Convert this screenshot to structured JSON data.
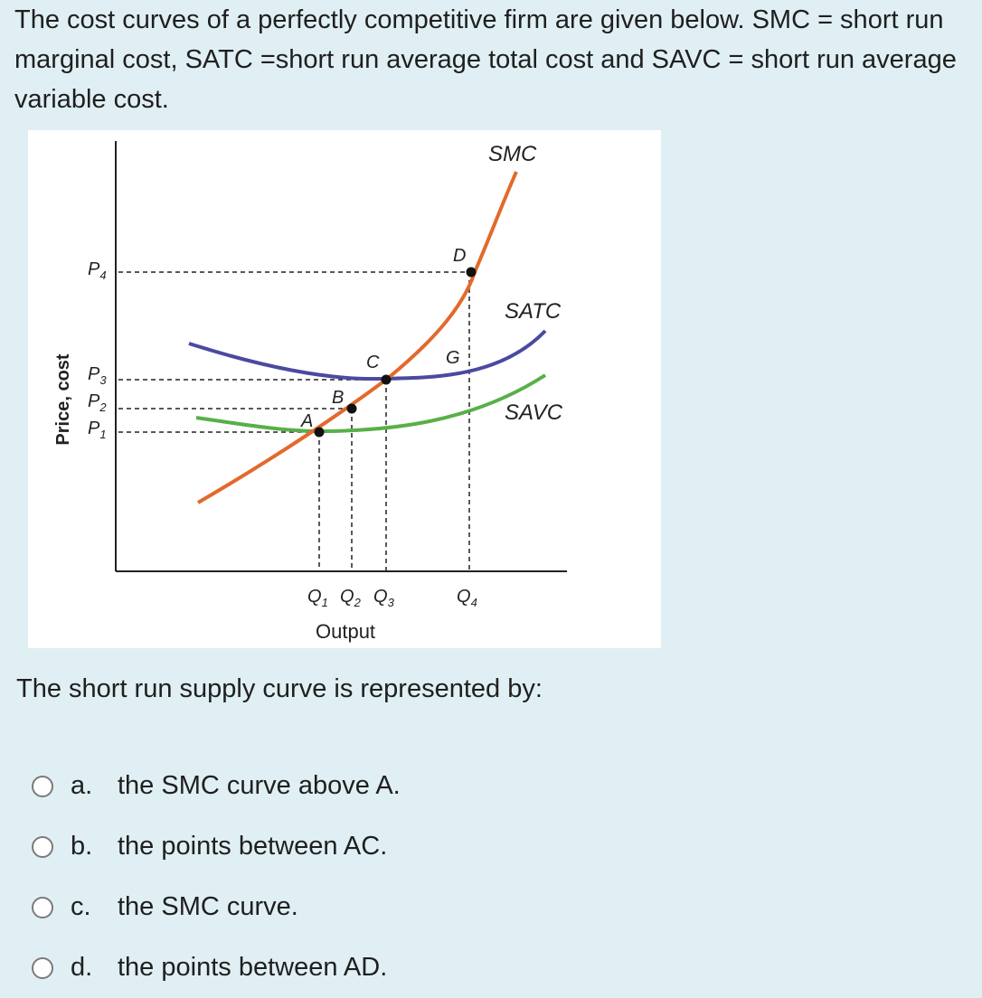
{
  "question": {
    "intro": "The cost curves of a perfectly competitive firm are given below. SMC = short run marginal cost, SATC =short run average total cost and SAVC = short run average variable cost."
  },
  "figure": {
    "y_axis_label": "Price, cost",
    "x_axis_label": "Output",
    "price_labels": {
      "p4": "P",
      "p4_sub": "4",
      "p3": "P",
      "p3_sub": "3",
      "p2": "P",
      "p2_sub": "2",
      "p1": "P",
      "p1_sub": "1"
    },
    "quantity_labels": {
      "q1": "Q",
      "q1_sub": "1",
      "q2": "Q",
      "q2_sub": "2",
      "q3": "Q",
      "q3_sub": "3",
      "q4": "Q",
      "q4_sub": "4"
    },
    "curve_labels": {
      "smc": "SMC",
      "satc": "SATC",
      "savc": "SAVC"
    },
    "point_labels": {
      "a": "A",
      "b": "B",
      "c": "C",
      "d": "D",
      "g": "G"
    },
    "colors": {
      "smc": "#e26a2c",
      "satc": "#4a4aa0",
      "savc": "#58b048"
    }
  },
  "prompt": "The short run supply curve is represented by:",
  "options": [
    {
      "letter": "a.",
      "text": "the SMC curve above A."
    },
    {
      "letter": "b.",
      "text": "the points between AC."
    },
    {
      "letter": "c.",
      "text": "the SMC curve."
    },
    {
      "letter": "d.",
      "text": "the points between AD."
    }
  ]
}
